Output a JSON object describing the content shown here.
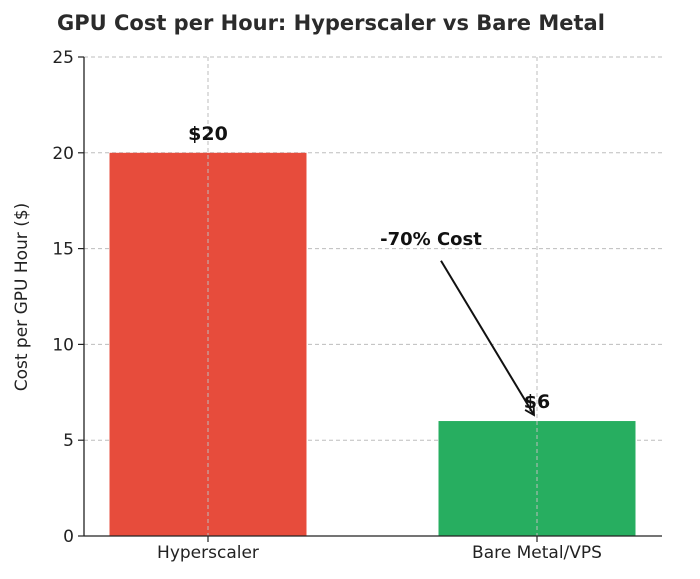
{
  "chart_data": {
    "type": "bar",
    "title": "GPU Cost per Hour: Hyperscaler vs Bare Metal",
    "xlabel": "",
    "ylabel": "Cost per GPU Hour ($)",
    "categories": [
      "Hyperscaler",
      "Bare Metal/VPS"
    ],
    "values": [
      20,
      6
    ],
    "data_labels": [
      "$20",
      "$6"
    ],
    "colors": [
      "#e74c3c",
      "#27ae60"
    ],
    "ylim": [
      0,
      25
    ],
    "yticks": [
      0,
      5,
      10,
      15,
      20,
      25
    ],
    "ytick_labels": [
      "0",
      "5",
      "10",
      "15",
      "20",
      "25"
    ],
    "grid": true,
    "annotation": {
      "text": "-70% Cost",
      "target_category": "Bare Metal/VPS",
      "target_value": 6,
      "text_y_value": 15.2
    }
  }
}
